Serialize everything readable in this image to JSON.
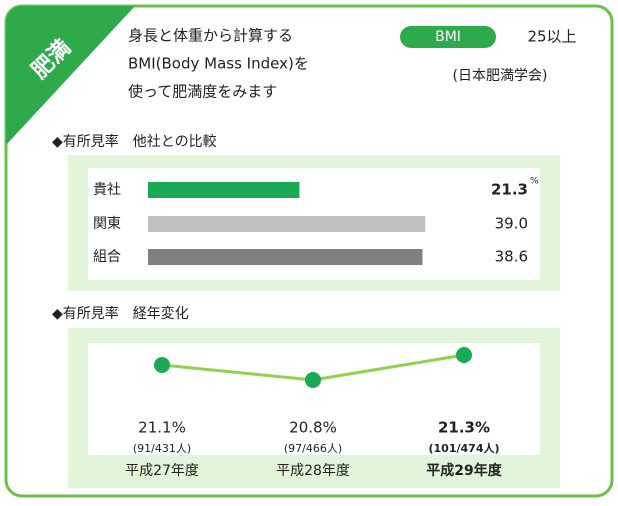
{
  "header": {
    "badge": "肥満",
    "description": [
      "身長と体重から計算する",
      "BMI(Body Mass Index)を",
      "使って肥満度をみます"
    ],
    "pill": "BMI",
    "criterion": "25以上",
    "source": "(日本肥満学会)"
  },
  "chart_data": [
    {
      "type": "hbar",
      "title": "◆有所見率　他社との比較",
      "categories": [
        "貴社",
        "関東",
        "組合"
      ],
      "values": [
        21.3,
        39.0,
        38.6
      ],
      "value_labels": [
        "21.3",
        "39.0",
        "38.6"
      ],
      "unit": "%",
      "colors": [
        "#1aaa55",
        "#bfbfbf",
        "#808080"
      ],
      "xlim": [
        0,
        45
      ],
      "highlight_index": 0
    },
    {
      "type": "line",
      "title": "◆有所見率　経年変化",
      "categories": [
        "平成27年度",
        "平成28年度",
        "平成29年度"
      ],
      "values": [
        21.1,
        20.8,
        21.3
      ],
      "value_labels": [
        "21.1%",
        "20.8%",
        "21.3%"
      ],
      "counts": [
        "(91/431人)",
        "(97/466人)",
        "(101/474人)"
      ],
      "line_color": "#92d050",
      "marker_color": "#1aaa55",
      "ylim": [
        20.5,
        21.5
      ],
      "highlight_index": 2
    }
  ]
}
